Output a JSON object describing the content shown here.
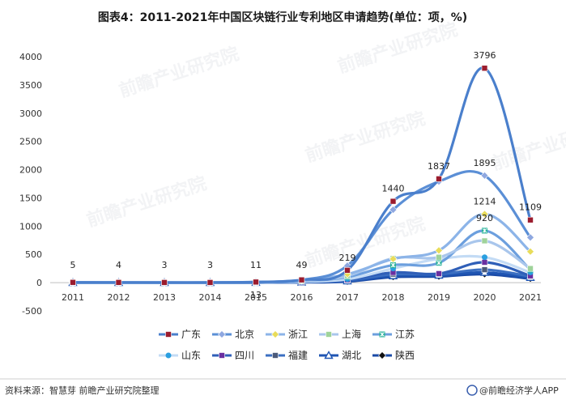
{
  "chart_data": {
    "type": "line",
    "title": "图表4：2011-2021年中国区块链行业专利地区申请趋势(单位：项，%)",
    "categories": [
      "2011",
      "2012",
      "2013",
      "2014",
      "2015",
      "2016",
      "2017",
      "2018",
      "2019",
      "2020",
      "2021"
    ],
    "ylim": [
      -500,
      4000
    ],
    "yticks": [
      -500,
      0,
      500,
      1000,
      1500,
      2000,
      2500,
      3000,
      3500,
      4000
    ],
    "grid": false,
    "legend_position": "bottom",
    "series": [
      {
        "name": "广东",
        "color": "#4a7fcc",
        "marker": "square",
        "marker_color": "#9b1c2e",
        "values": [
          5,
          4,
          3,
          3,
          11,
          49,
          219,
          1440,
          1837,
          3796,
          1109
        ],
        "labels": [
          "5",
          "4",
          "3",
          "3",
          "11",
          "49",
          "219",
          "1440",
          "1837",
          "3796",
          "1109"
        ]
      },
      {
        "name": "北京",
        "color": "#5b8fd6",
        "marker": "diamond",
        "marker_color": "#8fa8e0",
        "values": [
          3,
          3,
          2,
          2,
          13,
          45,
          300,
          1290,
          1790,
          1895,
          800
        ],
        "labels": [
          "",
          "",
          "",
          "",
          "13",
          "",
          "",
          "",
          "",
          "1895",
          ""
        ]
      },
      {
        "name": "浙江",
        "color": "#8cb4e8",
        "marker": "diamond",
        "marker_color": "#e8dc5a",
        "values": [
          2,
          2,
          2,
          2,
          6,
          40,
          150,
          420,
          570,
          1214,
          550
        ],
        "labels": [
          "",
          "",
          "",
          "",
          "",
          "",
          "",
          "",
          "",
          "1214",
          ""
        ]
      },
      {
        "name": "上海",
        "color": "#a9c6ec",
        "marker": "square",
        "marker_color": "#9fd39a",
        "values": [
          2,
          2,
          1,
          2,
          5,
          30,
          120,
          430,
          450,
          740,
          250
        ],
        "labels": []
      },
      {
        "name": "江苏",
        "color": "#6c9fde",
        "marker": "asterisk",
        "marker_color": "#2ab39a",
        "values": [
          1,
          1,
          1,
          1,
          4,
          25,
          100,
          310,
          350,
          920,
          230
        ],
        "labels": [
          "",
          "",
          "",
          "",
          "",
          "",
          "",
          "",
          "",
          "920",
          ""
        ]
      },
      {
        "name": "山东",
        "color": "#c3dbf5",
        "marker": "circle",
        "marker_color": "#2a9fe0",
        "values": [
          1,
          1,
          1,
          1,
          3,
          15,
          60,
          250,
          420,
          450,
          180
        ],
        "labels": []
      },
      {
        "name": "四川",
        "color": "#2f5fb8",
        "marker": "square",
        "marker_color": "#6a2fa0",
        "values": [
          1,
          1,
          1,
          1,
          2,
          10,
          50,
          180,
          160,
          360,
          120
        ],
        "labels": []
      },
      {
        "name": "福建",
        "color": "#3b6fc2",
        "marker": "square",
        "marker_color": "#4b5a7a",
        "values": [
          1,
          1,
          1,
          1,
          2,
          10,
          40,
          150,
          150,
          230,
          110
        ],
        "labels": []
      },
      {
        "name": "湖北",
        "color": "#1f55b3",
        "marker": "triangle",
        "marker_color": "#1f55b3",
        "values": [
          1,
          1,
          1,
          1,
          2,
          8,
          30,
          120,
          130,
          180,
          90
        ],
        "labels": []
      },
      {
        "name": "陕西",
        "color": "#1a4aa6",
        "marker": "diamond",
        "marker_color": "#111111",
        "values": [
          1,
          1,
          1,
          1,
          1,
          5,
          20,
          100,
          110,
          150,
          70
        ],
        "labels": []
      }
    ]
  },
  "footer": {
    "source": "资料来源：智慧芽 前瞻产业研究院整理",
    "credit": "@前瞻经济学人APP"
  },
  "watermark": "前瞻产业研究院"
}
